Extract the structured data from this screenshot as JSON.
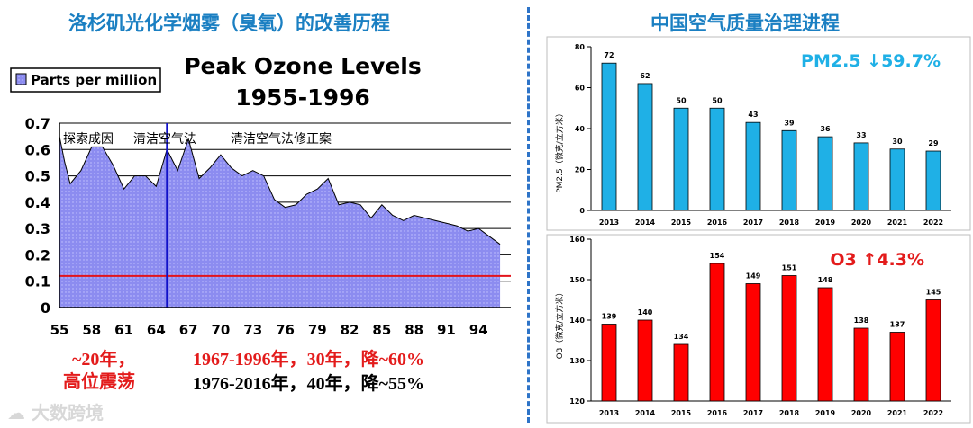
{
  "left_title": "洛杉矶光化学烟雾（臭氧）的改善历程",
  "right_title": "中国空气质量治理进程",
  "ozone": {
    "legend": "Parts per million",
    "chart_title_1": "Peak Ozone Levels",
    "chart_title_2": "1955-1996",
    "events": [
      "探索成因",
      "清洁空气法",
      "清洁空气法修正案"
    ],
    "ann_red_1": "~20年，",
    "ann_red_2": "高位震荡",
    "ann_red_3": "1967-1996年，30年，降~60%",
    "ann_black": "1976-2016年，40年，降~55%"
  },
  "pm_badge": "PM2.5 ↓59.7%",
  "o3_badge": "O3 ↑4.3%",
  "watermark": "大数跨境",
  "colors": {
    "title": "#1a7fc2",
    "pm_bar": "#1fb0e6",
    "o3_bar": "#ff0000",
    "ozone_fill": "#8c8cf0",
    "ref_line": "#e3141c",
    "event_line": "#1010c8"
  },
  "chart_data": [
    {
      "type": "area",
      "title": "Peak Ozone Levels 1955-1996",
      "legend": [
        "Parts per million"
      ],
      "xlim": [
        55,
        97
      ],
      "ylim": [
        0,
        0.7
      ],
      "x_ticks": [
        "55",
        "58",
        "61",
        "64",
        "67",
        "70",
        "73",
        "76",
        "79",
        "82",
        "85",
        "88",
        "91",
        "94"
      ],
      "y_ticks": [
        "0",
        "0.1",
        "0.2",
        "0.3",
        "0.4",
        "0.5",
        "0.6",
        "0.7"
      ],
      "x": [
        55,
        55.5,
        56,
        57,
        58,
        59,
        60,
        61,
        62,
        63,
        64,
        65,
        66,
        66.5,
        67,
        68,
        69,
        70,
        71,
        72,
        73,
        74,
        75,
        76,
        77,
        78,
        79,
        80,
        81,
        82,
        83,
        84,
        85,
        86,
        87,
        88,
        89,
        90,
        91,
        92,
        93,
        94,
        95,
        96
      ],
      "values": [
        0.65,
        0.55,
        0.47,
        0.52,
        0.61,
        0.61,
        0.54,
        0.45,
        0.5,
        0.5,
        0.46,
        0.6,
        0.52,
        0.58,
        0.64,
        0.49,
        0.53,
        0.58,
        0.53,
        0.5,
        0.52,
        0.5,
        0.41,
        0.38,
        0.39,
        0.43,
        0.45,
        0.49,
        0.39,
        0.4,
        0.39,
        0.34,
        0.39,
        0.35,
        0.33,
        0.35,
        0.34,
        0.33,
        0.32,
        0.31,
        0.29,
        0.3,
        0.27,
        0.24
      ],
      "reference_line": 0.12,
      "event_line_x": 65
    },
    {
      "type": "bar",
      "ylabel": "PM2.5（微克/立方米）",
      "categories": [
        "2013",
        "2014",
        "2015",
        "2016",
        "2017",
        "2018",
        "2019",
        "2020",
        "2021",
        "2022"
      ],
      "values": [
        72,
        62,
        50,
        50,
        43,
        39,
        36,
        33,
        30,
        29
      ],
      "ylim": [
        0,
        80
      ],
      "y_ticks": [
        "0",
        "20",
        "40",
        "60",
        "80"
      ]
    },
    {
      "type": "bar",
      "ylabel": "O3（微克/立方米）",
      "categories": [
        "2013",
        "2014",
        "2015",
        "2016",
        "2017",
        "2018",
        "2019",
        "2020",
        "2021",
        "2022"
      ],
      "values": [
        139,
        140,
        134,
        154,
        149,
        151,
        148,
        138,
        137,
        145
      ],
      "ylim": [
        120,
        160
      ],
      "y_ticks": [
        "120",
        "130",
        "140",
        "150",
        "160"
      ]
    }
  ]
}
